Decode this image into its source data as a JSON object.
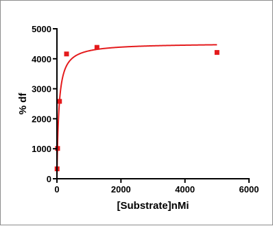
{
  "chart_data": {
    "type": "scatter",
    "title": "",
    "xlabel": "[Substrate]nMi",
    "ylabel": "% df",
    "xlim": [
      0,
      6000
    ],
    "ylim": [
      0,
      5000
    ],
    "x_ticks": [
      0,
      2000,
      4000,
      6000
    ],
    "y_ticks": [
      0,
      1000,
      2000,
      3000,
      4000,
      5000
    ],
    "grid": false,
    "legend": "none",
    "colors": {
      "points": "#e41a1c",
      "fit_line": "#e41a1c",
      "axes": "#000000"
    },
    "series": [
      {
        "marker": "square",
        "x": [
          5,
          20,
          80,
          300,
          1250,
          5000
        ],
        "y": [
          330,
          1010,
          2580,
          4160,
          4380,
          4210
        ]
      }
    ],
    "fit": {
      "kind": "Michaelis-Menten curve",
      "vmax": 4520,
      "km": 60,
      "x_range": [
        0,
        5000
      ]
    }
  }
}
